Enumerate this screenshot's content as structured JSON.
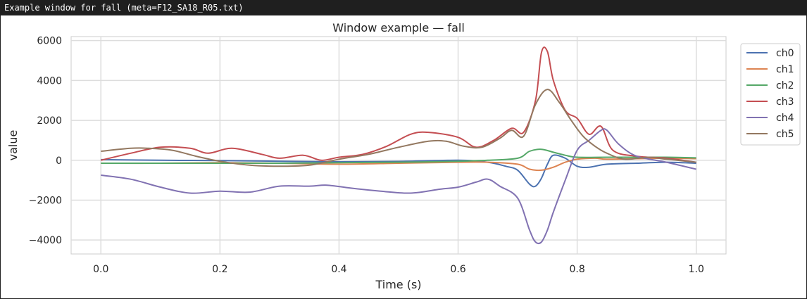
{
  "window": {
    "title": "Example window for fall (meta=F12_SA18_R05.txt)"
  },
  "chart_data": {
    "type": "line",
    "title": "Window example — fall",
    "xlabel": "Time (s)",
    "ylabel": "value",
    "xlim": [
      -0.05,
      1.05
    ],
    "ylim": [
      -4700,
      6200
    ],
    "xticks": [
      0.0,
      0.2,
      0.4,
      0.6,
      0.8,
      1.0
    ],
    "xtick_labels": [
      "0.0",
      "0.2",
      "0.4",
      "0.6",
      "0.8",
      "1.0"
    ],
    "yticks": [
      -4000,
      -2000,
      0,
      2000,
      4000,
      6000
    ],
    "ytick_labels": [
      "−4000",
      "−2000",
      "0",
      "2000",
      "4000",
      "6000"
    ],
    "grid": true,
    "legend_position": "upper-right-outside",
    "series": [
      {
        "name": "ch0",
        "color": "#4c72b0",
        "x": [
          0.0,
          0.1,
          0.2,
          0.3,
          0.4,
          0.5,
          0.6,
          0.65,
          0.68,
          0.7,
          0.72,
          0.73,
          0.74,
          0.75,
          0.76,
          0.78,
          0.8,
          0.82,
          0.85,
          0.9,
          0.95,
          1.0
        ],
        "y": [
          30,
          0,
          -20,
          -50,
          -80,
          -60,
          0,
          -100,
          -300,
          -500,
          -1200,
          -1300,
          -900,
          -200,
          250,
          100,
          -300,
          -350,
          -200,
          -150,
          -100,
          -150
        ]
      },
      {
        "name": "ch1",
        "color": "#dd8452",
        "x": [
          0.0,
          0.1,
          0.2,
          0.3,
          0.4,
          0.5,
          0.6,
          0.65,
          0.7,
          0.72,
          0.74,
          0.76,
          0.78,
          0.8,
          0.83,
          0.85,
          0.9,
          0.95,
          1.0
        ],
        "y": [
          -150,
          -150,
          -120,
          -150,
          -200,
          -150,
          -100,
          -100,
          -200,
          -450,
          -500,
          -350,
          -100,
          50,
          100,
          50,
          80,
          100,
          80
        ]
      },
      {
        "name": "ch2",
        "color": "#55a868",
        "x": [
          0.0,
          0.1,
          0.2,
          0.3,
          0.4,
          0.5,
          0.6,
          0.65,
          0.7,
          0.72,
          0.74,
          0.76,
          0.78,
          0.8,
          0.85,
          0.9,
          0.95,
          1.0
        ],
        "y": [
          -150,
          -150,
          -150,
          -150,
          -120,
          -100,
          -50,
          0,
          100,
          450,
          550,
          400,
          250,
          150,
          150,
          150,
          150,
          120
        ]
      },
      {
        "name": "ch3",
        "color": "#c44e52",
        "x": [
          0.0,
          0.05,
          0.1,
          0.15,
          0.18,
          0.22,
          0.27,
          0.3,
          0.34,
          0.37,
          0.4,
          0.44,
          0.48,
          0.52,
          0.55,
          0.6,
          0.63,
          0.66,
          0.69,
          0.71,
          0.73,
          0.74,
          0.75,
          0.76,
          0.78,
          0.8,
          0.82,
          0.84,
          0.86,
          0.9,
          0.95,
          1.0
        ],
        "y": [
          0,
          350,
          650,
          600,
          350,
          600,
          300,
          100,
          250,
          0,
          150,
          300,
          700,
          1300,
          1400,
          1150,
          650,
          1000,
          1600,
          1400,
          3000,
          5400,
          5450,
          4000,
          2500,
          2100,
          1300,
          1700,
          500,
          200,
          100,
          -100
        ]
      },
      {
        "name": "ch4",
        "color": "#8172b2",
        "x": [
          0.0,
          0.05,
          0.1,
          0.15,
          0.2,
          0.25,
          0.3,
          0.35,
          0.38,
          0.42,
          0.47,
          0.52,
          0.57,
          0.6,
          0.63,
          0.65,
          0.67,
          0.7,
          0.72,
          0.73,
          0.74,
          0.75,
          0.76,
          0.78,
          0.8,
          0.82,
          0.84,
          0.85,
          0.87,
          0.9,
          0.95,
          1.0
        ],
        "y": [
          -750,
          -950,
          -1350,
          -1650,
          -1550,
          -1600,
          -1300,
          -1300,
          -1250,
          -1400,
          -1550,
          -1650,
          -1450,
          -1350,
          -1100,
          -950,
          -1300,
          -1900,
          -3500,
          -4100,
          -4100,
          -3500,
          -2600,
          -1000,
          500,
          1000,
          1500,
          1500,
          800,
          200,
          -100,
          -450
        ]
      },
      {
        "name": "ch5",
        "color": "#937860",
        "x": [
          0.0,
          0.05,
          0.08,
          0.12,
          0.16,
          0.2,
          0.25,
          0.3,
          0.35,
          0.4,
          0.45,
          0.5,
          0.55,
          0.58,
          0.61,
          0.64,
          0.67,
          0.69,
          0.71,
          0.73,
          0.75,
          0.77,
          0.79,
          0.81,
          0.83,
          0.85,
          0.88,
          0.92,
          0.95,
          1.0
        ],
        "y": [
          450,
          600,
          600,
          500,
          200,
          -50,
          -250,
          -300,
          -250,
          50,
          300,
          650,
          950,
          950,
          700,
          650,
          1100,
          1500,
          1200,
          2800,
          3550,
          2900,
          2000,
          1200,
          700,
          350,
          50,
          150,
          50,
          -100
        ]
      }
    ]
  }
}
